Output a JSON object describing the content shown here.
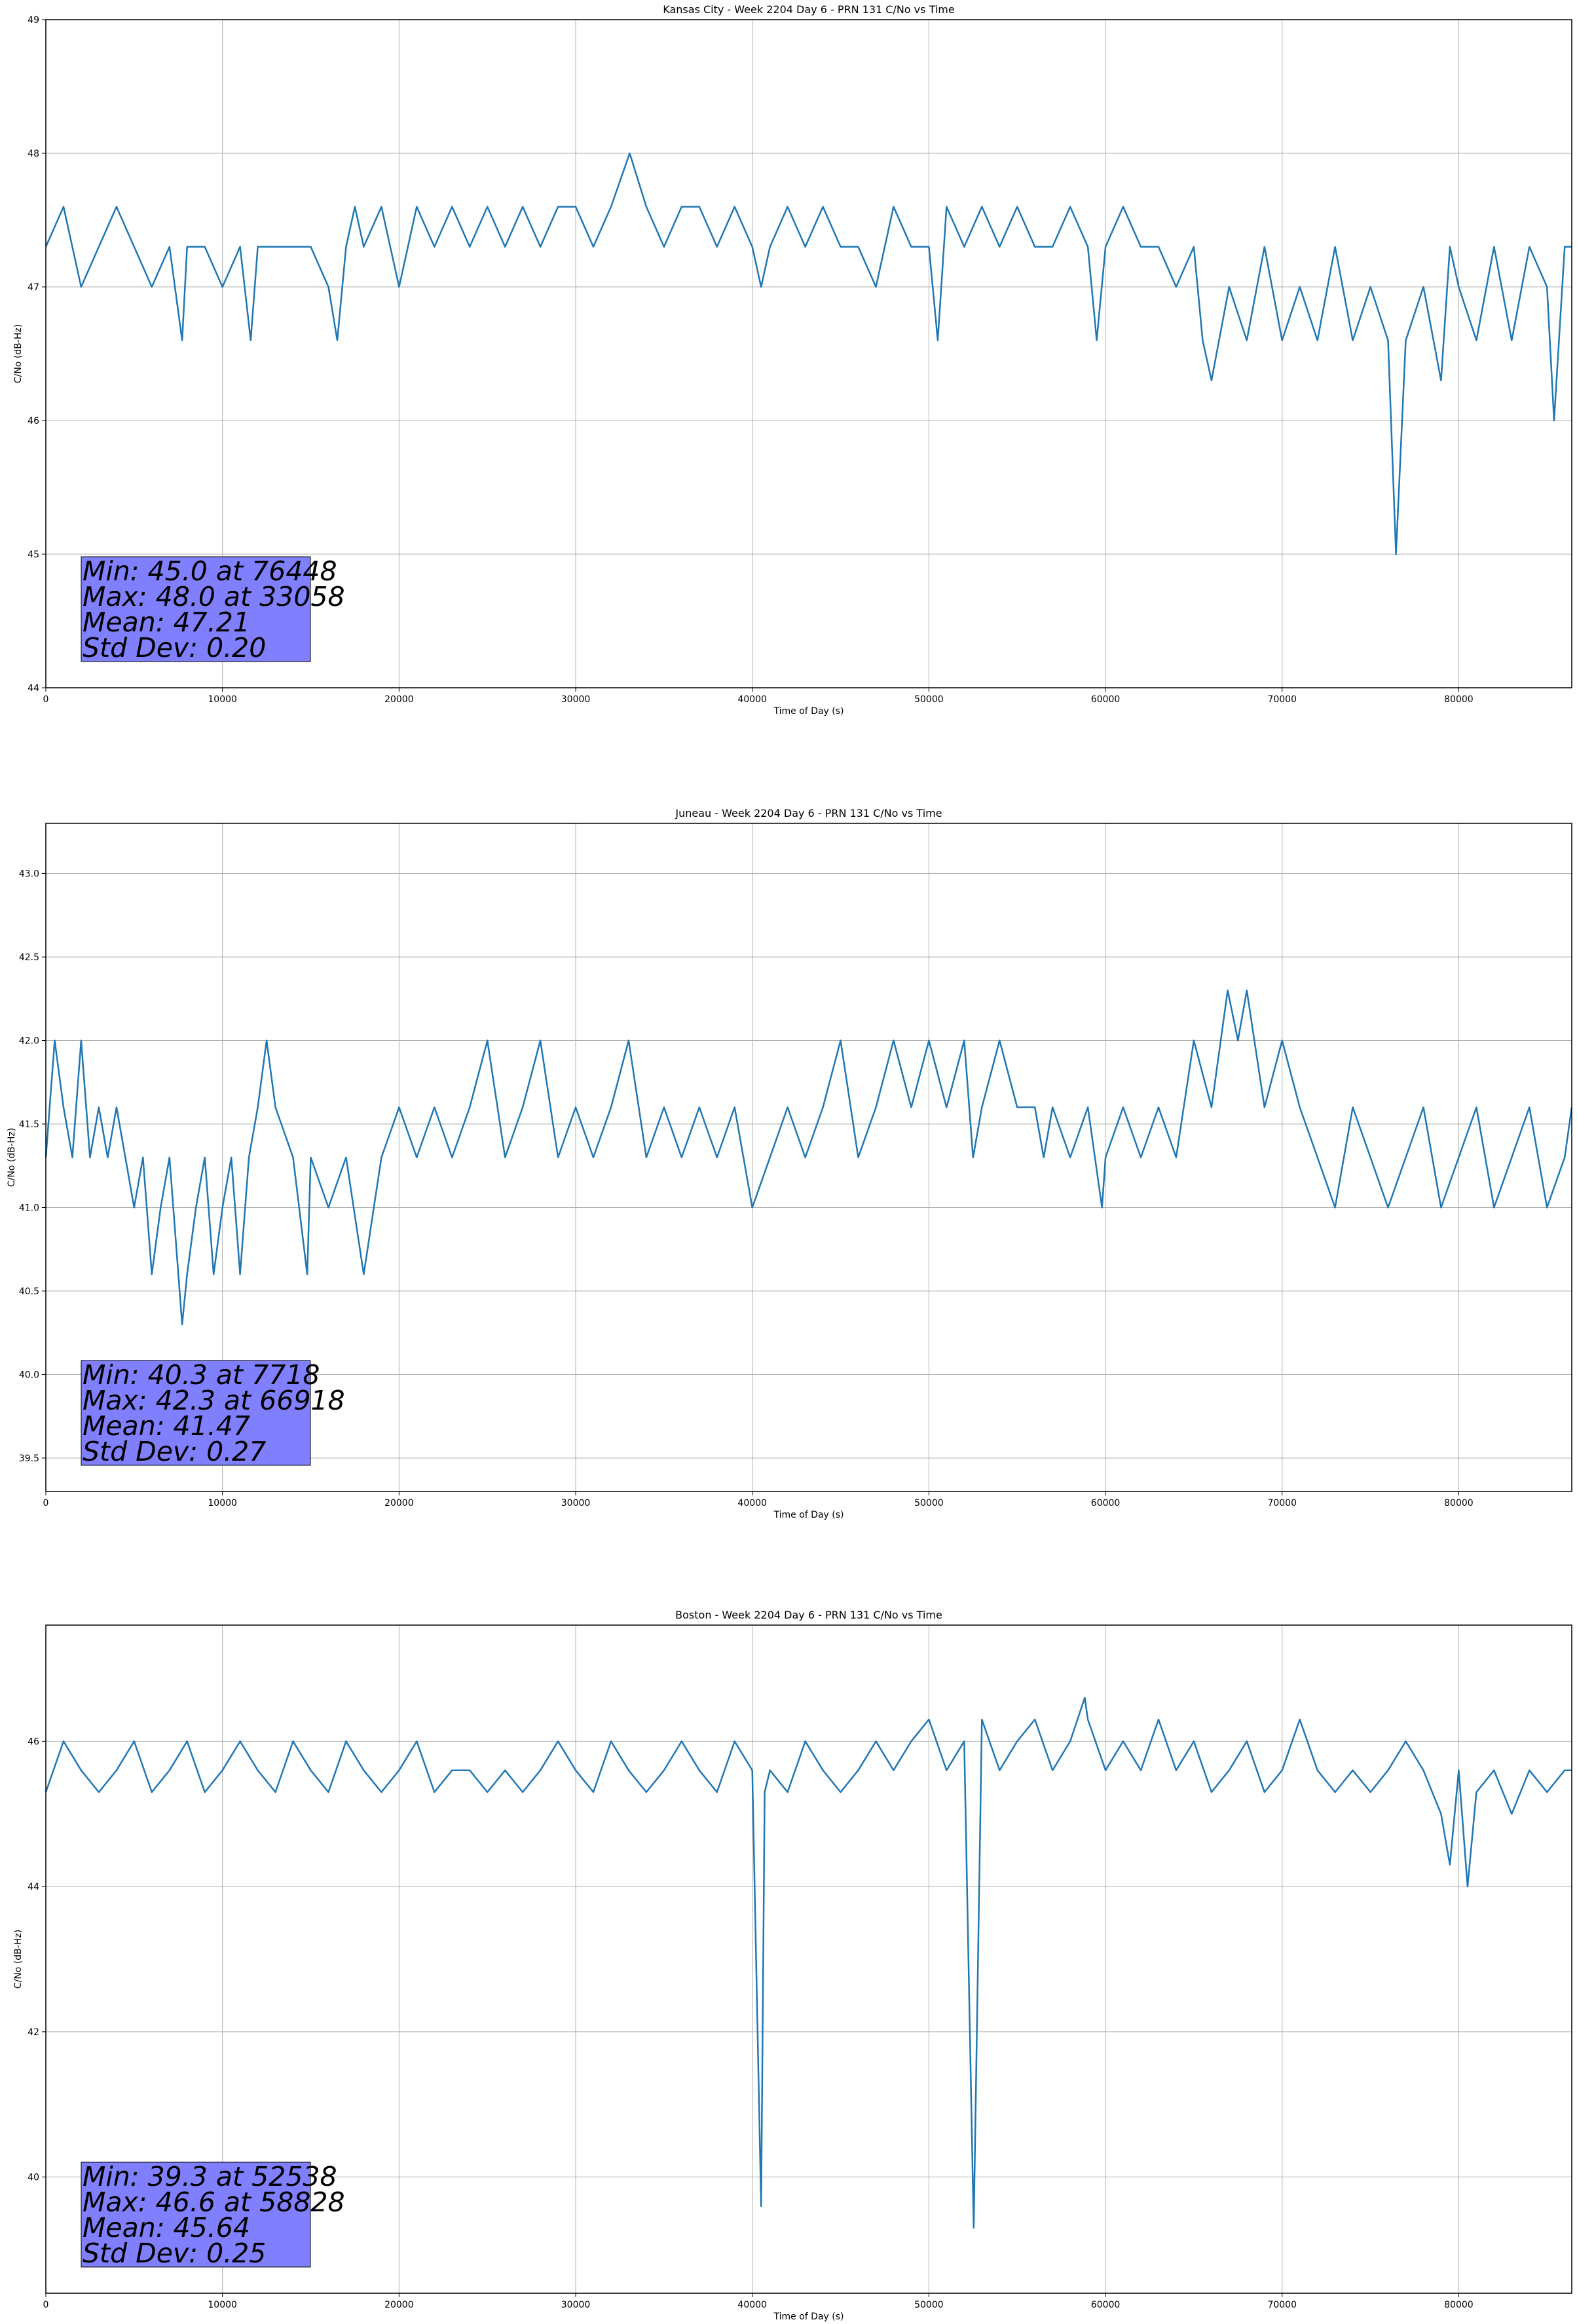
{
  "figure": {
    "colors": {
      "series": "#1f77b4",
      "grid": "#b0b0b0",
      "stats_box": "#8080ff",
      "axes": "#000000"
    }
  },
  "chart_data": [
    {
      "type": "line",
      "title": "Kansas City - Week 2204 Day 6 - PRN 131 C/No vs Time",
      "xlabel": "Time of Day (s)",
      "ylabel": "C/No (dB-Hz)",
      "xlim": [
        0,
        86400
      ],
      "ylim": [
        44,
        49
      ],
      "xticks": [
        0,
        10000,
        20000,
        30000,
        40000,
        50000,
        60000,
        70000,
        80000
      ],
      "xtick_labels": [
        "0",
        "10000",
        "20000",
        "30000",
        "40000",
        "50000",
        "60000",
        "70000",
        "80000"
      ],
      "yticks": [
        44,
        45,
        46,
        47,
        48,
        49
      ],
      "ytick_labels": [
        "44",
        "45",
        "46",
        "47",
        "48",
        "49"
      ],
      "grid": true,
      "series": [
        {
          "x": [
            0,
            1000,
            2000,
            3000,
            4000,
            5000,
            6000,
            7000,
            7718,
            8000,
            9000,
            10000,
            11000,
            11600,
            12000,
            13000,
            14000,
            15000,
            16000,
            16500,
            17000,
            17500,
            18000,
            19000,
            20000,
            21000,
            22000,
            23000,
            24000,
            25000,
            26000,
            27000,
            28000,
            29000,
            30000,
            31000,
            32000,
            33058,
            34000,
            35000,
            36000,
            37000,
            38000,
            39000,
            40000,
            40500,
            41000,
            42000,
            43000,
            44000,
            45000,
            46000,
            47000,
            48000,
            49000,
            50000,
            50500,
            51000,
            52000,
            53000,
            54000,
            55000,
            56000,
            57000,
            58000,
            59000,
            59500,
            60000,
            61000,
            62000,
            63000,
            64000,
            65000,
            65500,
            66000,
            67000,
            68000,
            69000,
            70000,
            71000,
            72000,
            73000,
            74000,
            75000,
            76000,
            76448,
            77000,
            78000,
            79000,
            79500,
            80000,
            81000,
            82000,
            83000,
            84000,
            85000,
            85400,
            86000,
            86400
          ],
          "y": [
            47.3,
            47.6,
            47.0,
            47.3,
            47.6,
            47.3,
            47.0,
            47.3,
            46.6,
            47.3,
            47.3,
            47.0,
            47.3,
            46.6,
            47.3,
            47.3,
            47.3,
            47.3,
            47.0,
            46.6,
            47.3,
            47.6,
            47.3,
            47.6,
            47.0,
            47.6,
            47.3,
            47.6,
            47.3,
            47.6,
            47.3,
            47.6,
            47.3,
            47.6,
            47.6,
            47.3,
            47.6,
            48.0,
            47.6,
            47.3,
            47.6,
            47.6,
            47.3,
            47.6,
            47.3,
            47.0,
            47.3,
            47.6,
            47.3,
            47.6,
            47.3,
            47.3,
            47.0,
            47.6,
            47.3,
            47.3,
            46.6,
            47.6,
            47.3,
            47.6,
            47.3,
            47.6,
            47.3,
            47.3,
            47.6,
            47.3,
            46.6,
            47.3,
            47.6,
            47.3,
            47.3,
            47.0,
            47.3,
            46.6,
            46.3,
            47.0,
            46.6,
            47.3,
            46.6,
            47.0,
            46.6,
            47.3,
            46.6,
            47.0,
            46.6,
            45.0,
            46.6,
            47.0,
            46.3,
            47.3,
            47.0,
            46.6,
            47.3,
            46.6,
            47.3,
            47.0,
            46.0,
            47.3,
            47.3
          ]
        }
      ],
      "stats": [
        "Min: 45.0 at 76448",
        "Max: 48.0 at 33058",
        "Mean: 47.21",
        "Std Dev: 0.20"
      ]
    },
    {
      "type": "line",
      "title": "Juneau - Week 2204 Day 6 - PRN 131 C/No vs Time",
      "xlabel": "Time of Day (s)",
      "ylabel": "C/No (dB-Hz)",
      "xlim": [
        0,
        86400
      ],
      "ylim": [
        39.3,
        43.3
      ],
      "xticks": [
        0,
        10000,
        20000,
        30000,
        40000,
        50000,
        60000,
        70000,
        80000
      ],
      "xtick_labels": [
        "0",
        "10000",
        "20000",
        "30000",
        "40000",
        "50000",
        "60000",
        "70000",
        "80000"
      ],
      "yticks": [
        39.5,
        40.0,
        40.5,
        41.0,
        41.5,
        42.0,
        42.5,
        43.0
      ],
      "ytick_labels": [
        "39.5",
        "40.0",
        "40.5",
        "41.0",
        "41.5",
        "42.0",
        "42.5",
        "43.0"
      ],
      "grid": true,
      "series": [
        {
          "x": [
            0,
            500,
            1000,
            1500,
            2000,
            2500,
            3000,
            3500,
            4000,
            4500,
            5000,
            5500,
            6000,
            6500,
            7000,
            7718,
            8000,
            8500,
            9000,
            9500,
            10000,
            10500,
            11000,
            11500,
            12000,
            12500,
            13000,
            14000,
            14800,
            15000,
            16000,
            17000,
            18000,
            19000,
            20000,
            21000,
            22000,
            23000,
            24000,
            25000,
            26000,
            27000,
            28000,
            29000,
            30000,
            31000,
            32000,
            33000,
            34000,
            35000,
            36000,
            37000,
            38000,
            39000,
            40000,
            41000,
            42000,
            43000,
            44000,
            45000,
            46000,
            47000,
            48000,
            49000,
            50000,
            51000,
            52000,
            52500,
            53000,
            54000,
            55000,
            56000,
            56500,
            57000,
            58000,
            59000,
            59800,
            60000,
            61000,
            62000,
            63000,
            64000,
            65000,
            66000,
            66918,
            67500,
            68000,
            69000,
            70000,
            71000,
            72000,
            73000,
            74000,
            75000,
            76000,
            77000,
            78000,
            79000,
            80000,
            81000,
            82000,
            83000,
            84000,
            85000,
            86000,
            86400
          ],
          "y": [
            41.3,
            42.0,
            41.6,
            41.3,
            42.0,
            41.3,
            41.6,
            41.3,
            41.6,
            41.3,
            41.0,
            41.3,
            40.6,
            41.0,
            41.3,
            40.3,
            40.6,
            41.0,
            41.3,
            40.6,
            41.0,
            41.3,
            40.6,
            41.3,
            41.6,
            42.0,
            41.6,
            41.3,
            40.6,
            41.3,
            41.0,
            41.3,
            40.6,
            41.3,
            41.6,
            41.3,
            41.6,
            41.3,
            41.6,
            42.0,
            41.3,
            41.6,
            42.0,
            41.3,
            41.6,
            41.3,
            41.6,
            42.0,
            41.3,
            41.6,
            41.3,
            41.6,
            41.3,
            41.6,
            41.0,
            41.3,
            41.6,
            41.3,
            41.6,
            42.0,
            41.3,
            41.6,
            42.0,
            41.6,
            42.0,
            41.6,
            42.0,
            41.3,
            41.6,
            42.0,
            41.6,
            41.6,
            41.3,
            41.6,
            41.3,
            41.6,
            41.0,
            41.3,
            41.6,
            41.3,
            41.6,
            41.3,
            42.0,
            41.6,
            42.3,
            42.0,
            42.3,
            41.6,
            42.0,
            41.6,
            41.3,
            41.0,
            41.6,
            41.3,
            41.0,
            41.3,
            41.6,
            41.0,
            41.3,
            41.6,
            41.0,
            41.3,
            41.6,
            41.0,
            41.3,
            41.6
          ]
        }
      ],
      "stats": [
        "Min: 40.3 at 7718",
        "Max: 42.3 at 66918",
        "Mean: 41.47",
        "Std Dev: 0.27"
      ]
    },
    {
      "type": "line",
      "title": "Boston - Week 2204 Day 6 - PRN 131 C/No vs Time",
      "xlabel": "Time of Day (s)",
      "ylabel": "C/No (dB-Hz)",
      "xlim": [
        0,
        86400
      ],
      "ylim": [
        38.4,
        47.6
      ],
      "xticks": [
        0,
        10000,
        20000,
        30000,
        40000,
        50000,
        60000,
        70000,
        80000
      ],
      "xtick_labels": [
        "0",
        "10000",
        "20000",
        "30000",
        "40000",
        "50000",
        "60000",
        "70000",
        "80000"
      ],
      "yticks": [
        40,
        42,
        44,
        46
      ],
      "ytick_labels": [
        "40",
        "42",
        "44",
        "46"
      ],
      "grid": true,
      "series": [
        {
          "x": [
            0,
            1000,
            2000,
            3000,
            4000,
            5000,
            6000,
            7000,
            8000,
            9000,
            10000,
            11000,
            12000,
            13000,
            14000,
            15000,
            16000,
            17000,
            18000,
            19000,
            20000,
            21000,
            22000,
            23000,
            24000,
            25000,
            26000,
            27000,
            28000,
            29000,
            30000,
            31000,
            32000,
            33000,
            34000,
            35000,
            36000,
            37000,
            38000,
            39000,
            40000,
            40500,
            40700,
            41000,
            42000,
            43000,
            44000,
            45000,
            46000,
            47000,
            48000,
            49000,
            50000,
            51000,
            52000,
            52538,
            53000,
            54000,
            55000,
            56000,
            57000,
            58000,
            58828,
            59000,
            60000,
            61000,
            62000,
            63000,
            64000,
            65000,
            66000,
            67000,
            68000,
            69000,
            70000,
            71000,
            72000,
            73000,
            74000,
            75000,
            76000,
            77000,
            78000,
            79000,
            79500,
            80000,
            80500,
            81000,
            82000,
            83000,
            84000,
            85000,
            86000,
            86400
          ],
          "y": [
            45.3,
            46.0,
            45.6,
            45.3,
            45.6,
            46.0,
            45.3,
            45.6,
            46.0,
            45.3,
            45.6,
            46.0,
            45.6,
            45.3,
            46.0,
            45.6,
            45.3,
            46.0,
            45.6,
            45.3,
            45.6,
            46.0,
            45.3,
            45.6,
            45.6,
            45.3,
            45.6,
            45.3,
            45.6,
            46.0,
            45.6,
            45.3,
            46.0,
            45.6,
            45.3,
            45.6,
            46.0,
            45.6,
            45.3,
            46.0,
            45.6,
            39.6,
            45.3,
            45.6,
            45.3,
            46.0,
            45.6,
            45.3,
            45.6,
            46.0,
            45.6,
            46.0,
            46.3,
            45.6,
            46.0,
            39.3,
            46.3,
            45.6,
            46.0,
            46.3,
            45.6,
            46.0,
            46.6,
            46.3,
            45.6,
            46.0,
            45.6,
            46.3,
            45.6,
            46.0,
            45.3,
            45.6,
            46.0,
            45.3,
            45.6,
            46.3,
            45.6,
            45.3,
            45.6,
            45.3,
            45.6,
            46.0,
            45.6,
            45.0,
            44.3,
            45.6,
            44.0,
            45.3,
            45.6,
            45.0,
            45.6,
            45.3,
            45.6,
            45.6
          ]
        }
      ],
      "stats": [
        "Min: 39.3 at 52538",
        "Max: 46.6 at 58828",
        "Mean: 45.64",
        "Std Dev: 0.25"
      ]
    }
  ]
}
